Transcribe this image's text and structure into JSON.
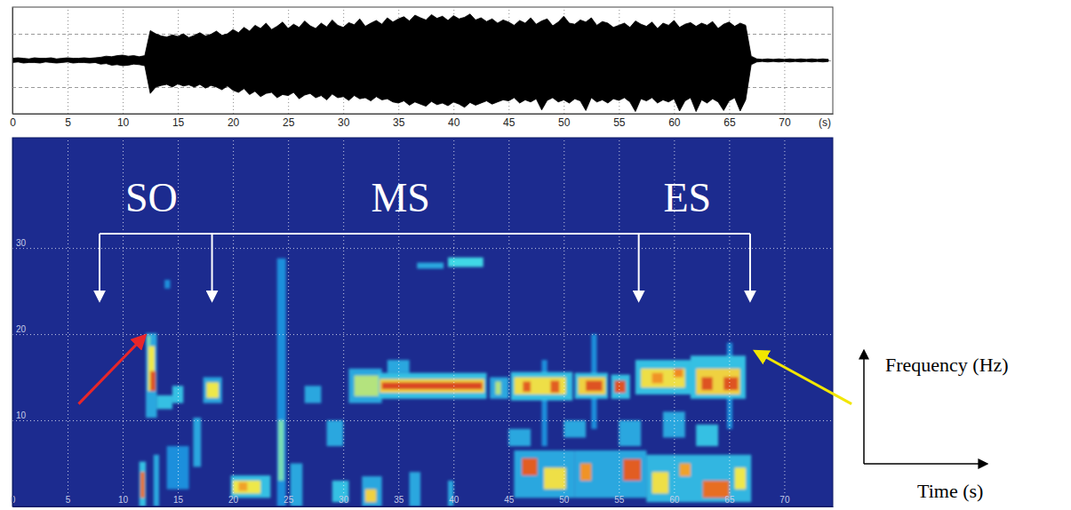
{
  "chart_data": [
    {
      "type": "area",
      "color": "#000000",
      "xlim": [
        0,
        74.4
      ],
      "xticks": [
        0,
        5,
        10,
        15,
        20,
        25,
        30,
        35,
        40,
        45,
        50,
        55,
        60,
        65,
        70
      ],
      "x_unit_label": "(s)",
      "ylim": [
        -1,
        1
      ],
      "yticks": [
        -0.5,
        0,
        0.5
      ],
      "grid": true,
      "tick_labels": "x",
      "x": [
        0,
        0.5,
        1,
        1.5,
        2,
        2.5,
        3,
        3.5,
        4,
        4.5,
        5,
        5.5,
        6,
        6.5,
        7,
        7.5,
        8,
        8.5,
        9,
        9.5,
        10,
        10.5,
        11,
        11.5,
        12,
        12.5,
        13,
        13.5,
        14,
        14.5,
        15,
        15.5,
        16,
        16.5,
        17,
        17.5,
        18,
        18.5,
        19,
        19.5,
        20,
        20.5,
        21,
        21.5,
        22,
        22.5,
        23,
        23.5,
        24,
        24.5,
        25,
        25.5,
        26,
        26.5,
        27,
        27.5,
        28,
        28.5,
        29,
        29.5,
        30,
        30.5,
        31,
        31.5,
        32,
        32.5,
        33,
        33.5,
        34,
        34.5,
        35,
        35.5,
        36,
        36.5,
        37,
        37.5,
        38,
        38.5,
        39,
        39.5,
        40,
        40.5,
        41,
        41.5,
        42,
        42.5,
        43,
        43.5,
        44,
        44.5,
        45,
        45.5,
        46,
        46.5,
        47,
        47.5,
        48,
        48.5,
        49,
        49.5,
        50,
        50.5,
        51,
        51.5,
        52,
        52.5,
        53,
        53.5,
        54,
        54.5,
        55,
        55.5,
        56,
        56.5,
        57,
        57.5,
        58,
        58.5,
        59,
        59.5,
        60,
        60.5,
        61,
        61.5,
        62,
        62.5,
        63,
        63.5,
        64,
        64.5,
        65,
        65.5,
        66,
        66.5,
        67,
        67.5,
        68,
        68.5,
        69,
        69.5,
        70,
        70.5,
        71,
        71.5,
        72,
        72.5,
        73,
        73.5,
        74
      ],
      "upper": [
        0.04,
        0.05,
        0.04,
        0.03,
        0.05,
        0.04,
        0.04,
        0.05,
        0.03,
        0.04,
        0.05,
        0.04,
        0.04,
        0.05,
        0.04,
        0.05,
        0.06,
        0.08,
        0.07,
        0.09,
        0.1,
        0.08,
        0.09,
        0.07,
        0.09,
        0.56,
        0.5,
        0.46,
        0.44,
        0.48,
        0.45,
        0.5,
        0.43,
        0.47,
        0.52,
        0.46,
        0.49,
        0.55,
        0.47,
        0.5,
        0.58,
        0.52,
        0.62,
        0.55,
        0.66,
        0.6,
        0.7,
        0.58,
        0.64,
        0.72,
        0.6,
        0.68,
        0.62,
        0.74,
        0.65,
        0.6,
        0.7,
        0.63,
        0.76,
        0.66,
        0.62,
        0.71,
        0.67,
        0.78,
        0.64,
        0.7,
        0.75,
        0.68,
        0.8,
        0.72,
        0.78,
        0.82,
        0.74,
        0.85,
        0.8,
        0.76,
        0.86,
        0.79,
        0.83,
        0.75,
        0.84,
        0.78,
        0.81,
        0.87,
        0.76,
        0.8,
        0.73,
        0.78,
        0.7,
        0.76,
        0.72,
        0.66,
        0.75,
        0.7,
        0.8,
        0.68,
        0.74,
        0.78,
        0.65,
        0.72,
        0.83,
        0.7,
        0.68,
        0.76,
        0.72,
        0.8,
        0.66,
        0.73,
        0.7,
        0.62,
        0.66,
        0.7,
        0.62,
        0.74,
        0.68,
        0.64,
        0.72,
        0.6,
        0.7,
        0.66,
        0.75,
        0.62,
        0.68,
        0.71,
        0.64,
        0.7,
        0.66,
        0.73,
        0.6,
        0.68,
        0.72,
        0.64,
        0.7,
        0.66,
        0.08,
        0.03,
        0.02,
        0.03,
        0.02,
        0.03,
        0.02,
        0.03,
        0.02,
        0.03,
        0.02,
        0.03,
        0.02,
        0.03,
        0.02
      ],
      "lower": [
        -0.04,
        -0.03,
        -0.05,
        -0.04,
        -0.04,
        -0.05,
        -0.03,
        -0.04,
        -0.05,
        -0.04,
        -0.03,
        -0.05,
        -0.04,
        -0.04,
        -0.05,
        -0.04,
        -0.07,
        -0.06,
        -0.09,
        -0.08,
        -0.1,
        -0.09,
        -0.07,
        -0.08,
        -0.1,
        -0.62,
        -0.5,
        -0.47,
        -0.45,
        -0.5,
        -0.44,
        -0.48,
        -0.46,
        -0.5,
        -0.45,
        -0.52,
        -0.47,
        -0.5,
        -0.55,
        -0.48,
        -0.56,
        -0.6,
        -0.53,
        -0.64,
        -0.58,
        -0.68,
        -0.62,
        -0.6,
        -0.7,
        -0.64,
        -0.66,
        -0.6,
        -0.72,
        -0.65,
        -0.62,
        -0.7,
        -0.66,
        -0.74,
        -0.63,
        -0.7,
        -0.68,
        -0.75,
        -0.66,
        -0.72,
        -0.7,
        -0.76,
        -0.68,
        -0.74,
        -0.72,
        -0.78,
        -0.8,
        -0.76,
        -0.84,
        -0.78,
        -0.82,
        -0.86,
        -0.77,
        -0.83,
        -0.8,
        -0.85,
        -0.78,
        -0.82,
        -0.88,
        -0.79,
        -0.84,
        -0.8,
        -0.76,
        -0.82,
        -0.78,
        -0.74,
        -0.76,
        -0.7,
        -0.8,
        -0.74,
        -0.78,
        -0.72,
        -0.93,
        -0.75,
        -0.7,
        -0.78,
        -0.74,
        -0.8,
        -0.72,
        -0.76,
        -0.94,
        -0.7,
        -0.78,
        -0.74,
        -0.8,
        -0.72,
        -0.75,
        -0.7,
        -0.78,
        -0.96,
        -0.72,
        -0.76,
        -0.7,
        -0.8,
        -0.74,
        -0.78,
        -0.72,
        -0.95,
        -0.76,
        -0.7,
        -0.96,
        -0.74,
        -0.8,
        -0.72,
        -0.78,
        -0.94,
        -0.76,
        -0.7,
        -0.95,
        -0.74,
        -0.08,
        -0.03,
        -0.02,
        -0.03,
        -0.02,
        -0.03,
        -0.02,
        -0.03,
        -0.02,
        -0.03,
        -0.02,
        -0.03,
        -0.02,
        -0.03,
        -0.02
      ]
    },
    {
      "type": "heatmap",
      "x_label": "Time (s)",
      "y_label": "Frequency (Hz)",
      "xlim": [
        0,
        74.4
      ],
      "xticks": [
        0,
        5,
        10,
        15,
        20,
        25,
        30,
        35,
        40,
        45,
        50,
        55,
        60,
        65,
        70
      ],
      "ylim": [
        0,
        42.8
      ],
      "yticks": [
        10,
        20,
        30
      ],
      "grid": true,
      "zlim": [
        0,
        1
      ],
      "cells": [
        [
          12.8,
          13.3,
          0,
          6,
          0.35
        ],
        [
          14,
          16,
          2,
          7,
          0.3
        ],
        [
          13.8,
          14.3,
          25.3,
          26.3,
          0.3
        ],
        [
          12.1,
          13.1,
          10.3,
          20.1,
          0.35
        ],
        [
          11.5,
          12.1,
          0,
          5.2,
          0.4
        ],
        [
          11.6,
          12.0,
          1,
          4,
          0.85
        ],
        [
          13.1,
          14.5,
          11.3,
          12.9,
          0.4
        ],
        [
          12.3,
          12.9,
          13.4,
          18.6,
          0.6
        ],
        [
          12.5,
          13.0,
          13.4,
          15.7,
          0.9
        ],
        [
          12.2,
          12.5,
          18.6,
          19.8,
          0.5
        ],
        [
          14.5,
          15.5,
          12,
          14,
          0.4
        ],
        [
          16.4,
          17.1,
          4.6,
          10.3,
          0.35
        ],
        [
          17.3,
          19,
          12,
          15,
          0.35
        ],
        [
          17.6,
          18.7,
          12.6,
          14.4,
          0.6
        ],
        [
          19.8,
          23.4,
          1,
          3.6,
          0.4
        ],
        [
          20,
          22.5,
          1.5,
          3,
          0.6
        ],
        [
          20.5,
          21.3,
          1.8,
          2.8,
          0.75
        ],
        [
          24,
          24.8,
          0,
          28.8,
          0.3
        ],
        [
          24.1,
          24.6,
          3,
          10,
          0.5
        ],
        [
          25.2,
          26.3,
          0,
          5,
          0.35
        ],
        [
          26.5,
          28,
          12,
          14,
          0.35
        ],
        [
          28.5,
          30,
          7,
          10,
          0.35
        ],
        [
          29,
          30.5,
          0.5,
          3,
          0.4
        ],
        [
          31.7,
          33.5,
          0,
          3.5,
          0.35
        ],
        [
          32,
          33,
          0.5,
          2,
          0.65
        ],
        [
          30.5,
          33.5,
          12,
          16,
          0.35
        ],
        [
          31,
          33.5,
          12.8,
          15.2,
          0.55
        ],
        [
          33.2,
          43,
          12.5,
          15.5,
          0.4
        ],
        [
          34,
          36,
          15.5,
          17,
          0.35
        ],
        [
          33.3,
          42.8,
          13.2,
          14.8,
          0.65
        ],
        [
          33.5,
          42.6,
          13.6,
          14.4,
          0.92
        ],
        [
          36.7,
          39.1,
          27.6,
          28.3,
          0.35
        ],
        [
          39.5,
          42.7,
          27.8,
          28.9,
          0.45
        ],
        [
          36,
          37,
          0,
          4,
          0.35
        ],
        [
          39.5,
          40,
          0,
          3,
          0.35
        ],
        [
          43.3,
          45,
          12.5,
          15,
          0.35
        ],
        [
          43.8,
          44.3,
          13,
          14.5,
          0.55
        ],
        [
          45.5,
          51,
          1,
          6.5,
          0.35
        ],
        [
          51,
          57.5,
          1,
          6.5,
          0.35
        ],
        [
          57.5,
          67,
          0.5,
          6,
          0.38
        ],
        [
          45,
          47,
          7,
          9,
          0.35
        ],
        [
          50,
          52,
          8,
          10,
          0.35
        ],
        [
          55,
          57,
          7,
          10,
          0.35
        ],
        [
          59,
          61,
          8,
          11,
          0.35
        ],
        [
          62,
          64,
          7,
          9.5,
          0.4
        ],
        [
          52.5,
          53,
          9,
          20,
          0.3
        ],
        [
          64.8,
          65.3,
          9,
          19,
          0.3
        ],
        [
          48,
          48.5,
          7,
          17,
          0.3
        ],
        [
          45.2,
          50.8,
          12.3,
          15.6,
          0.4
        ],
        [
          45.5,
          50.2,
          13,
          15,
          0.62
        ],
        [
          46.3,
          47,
          13.3,
          14.5,
          0.88
        ],
        [
          48.8,
          49.6,
          13.2,
          14.6,
          0.88
        ],
        [
          51,
          54,
          12.5,
          15.5,
          0.4
        ],
        [
          51.3,
          53.8,
          13,
          15,
          0.65
        ],
        [
          52,
          53.5,
          13.4,
          14.6,
          0.9
        ],
        [
          54.3,
          56,
          12.5,
          15.3,
          0.4
        ],
        [
          54.6,
          55.6,
          13.2,
          14.6,
          0.9
        ],
        [
          56.5,
          61.5,
          13,
          17,
          0.4
        ],
        [
          57,
          61,
          13.8,
          16,
          0.62
        ],
        [
          58,
          59,
          14.3,
          15.5,
          0.78
        ],
        [
          60,
          60.8,
          15,
          16,
          0.8
        ],
        [
          61.5,
          66.5,
          12.5,
          17.5,
          0.4
        ],
        [
          62,
          66,
          13,
          16,
          0.65
        ],
        [
          62.5,
          63.5,
          13.5,
          15,
          0.9
        ],
        [
          64.5,
          65.8,
          13.5,
          15,
          0.9
        ],
        [
          46.2,
          47.6,
          3.6,
          5.6,
          0.88
        ],
        [
          48.2,
          50.2,
          2,
          4.5,
          0.62
        ],
        [
          51.5,
          52.5,
          3,
          5,
          0.78
        ],
        [
          55.4,
          57,
          3,
          5.5,
          0.88
        ],
        [
          58,
          59.5,
          1.5,
          4,
          0.62
        ],
        [
          60.5,
          61.5,
          3.5,
          5,
          0.75
        ],
        [
          62.6,
          65,
          1,
          3,
          0.85
        ],
        [
          65.5,
          66.5,
          2,
          4.5,
          0.6
        ]
      ],
      "phases": [
        {
          "label": "SO",
          "x": 12.6,
          "arrows": [
            7.9,
            18.1
          ]
        },
        {
          "label": "MS",
          "x": 35.2
        },
        {
          "label": "ES",
          "x": 61.2,
          "arrows": [
            56.8,
            66.9
          ]
        }
      ],
      "arrows": [
        {
          "color": "#e8262a",
          "from": [
            6.0,
            11.9
          ],
          "to": [
            12.0,
            19.8
          ]
        },
        {
          "color": "#f2e600",
          "from": [
            76.1,
            11.9
          ],
          "to": [
            67.4,
            18.0
          ]
        }
      ]
    }
  ]
}
